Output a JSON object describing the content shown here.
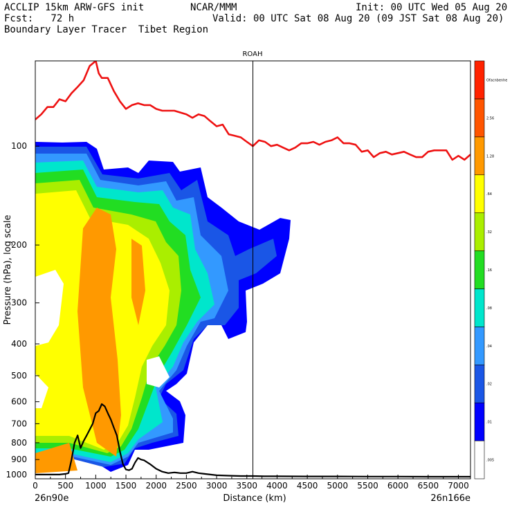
{
  "header": {
    "line1_left": "ACCLIP 15km ARW-GFS init",
    "line1_mid": "NCAR/MMM",
    "line1_right": "Init: 00 UTC Wed 05 Aug 20",
    "line2_left": "Fcst:   72 h",
    "line2_right": "Valid: 00 UTC Sat 08 Aug 20 (09 JST Sat 08 Aug 20)",
    "line3_left": "Boundary Layer Tracer  Tibet Region"
  },
  "chart_data": {
    "type": "contour-cross-section",
    "marker_label": "ROAH",
    "marker_x": 3600,
    "xlabel": "Distance (km)",
    "ylabel": "Pressure (hPa), log scale",
    "x_start_label": "26n90e",
    "x_end_label": "26n166e",
    "xlim": [
      0,
      7200
    ],
    "ylim": [
      1030,
      55
    ],
    "y_scale": "log",
    "x_ticks": [
      0,
      500,
      1000,
      1500,
      2000,
      2500,
      3000,
      3500,
      4000,
      4500,
      5000,
      5500,
      6000,
      6500,
      7000
    ],
    "y_ticks": [
      100,
      200,
      300,
      400,
      500,
      600,
      700,
      800,
      900,
      1000
    ],
    "colorbar": {
      "labels": [
        ".005",
        ".01",
        ".02",
        ".04",
        ".08",
        ".16",
        ".32",
        ".64",
        "1.28",
        "2.56",
        "Ofacnbenhe"
      ],
      "colors": [
        "#ffffff",
        "#0000ff",
        "#1a56e6",
        "#3399ff",
        "#00e6cc",
        "#22dd22",
        "#aaee00",
        "#ffff00",
        "#ff9900",
        "#ff5500",
        "#ff2200"
      ]
    },
    "series": [
      {
        "role": "red-line",
        "color": "#ee1111",
        "x": [
          0,
          100,
          200,
          300,
          400,
          500,
          600,
          700,
          800,
          900,
          950,
          1000,
          1050,
          1100,
          1200,
          1300,
          1400,
          1500,
          1600,
          1700,
          1800,
          1900,
          2000,
          2100,
          2200,
          2300,
          2400,
          2500,
          2600,
          2700,
          2800,
          2900,
          3000,
          3100,
          3200,
          3300,
          3400,
          3500,
          3600,
          3700,
          3800,
          3900,
          4000,
          4100,
          4200,
          4300,
          4400,
          4500,
          4600,
          4700,
          4800,
          4900,
          5000,
          5100,
          5200,
          5300,
          5400,
          5500,
          5600,
          5700,
          5800,
          5900,
          6000,
          6100,
          6200,
          6300,
          6400,
          6500,
          6600,
          6700,
          6800,
          6900,
          7000,
          7100,
          7200
        ],
        "y": [
          83,
          80,
          76,
          76,
          72,
          73,
          69,
          66,
          63,
          57,
          56,
          55,
          60,
          62,
          62,
          68,
          73,
          77,
          75,
          74,
          75,
          75,
          77,
          78,
          78,
          78,
          79,
          80,
          82,
          80,
          81,
          84,
          87,
          86,
          92,
          93,
          94,
          97,
          100,
          96,
          97,
          100,
          99,
          101,
          103,
          101,
          98,
          98,
          97,
          99,
          97,
          96,
          94,
          98,
          98,
          99,
          104,
          103,
          108,
          105,
          104,
          106,
          105,
          104,
          106,
          108,
          108,
          104,
          103,
          103,
          103,
          110,
          107,
          110,
          106
        ]
      },
      {
        "role": "terrain-line",
        "color": "#000000",
        "x": [
          0,
          100,
          200,
          300,
          400,
          500,
          550,
          600,
          650,
          700,
          750,
          800,
          850,
          900,
          950,
          1000,
          1050,
          1100,
          1150,
          1200,
          1250,
          1300,
          1350,
          1400,
          1450,
          1500,
          1550,
          1600,
          1650,
          1700,
          1750,
          1800,
          1900,
          2000,
          2100,
          2200,
          2300,
          2400,
          2500,
          2600,
          2700,
          2800,
          2900,
          3000,
          3200,
          3400,
          3600,
          3800,
          4000,
          4500,
          5000,
          5500,
          6000,
          6500,
          7000,
          7200
        ],
        "y": [
          1000,
          1000,
          1000,
          1000,
          1000,
          995,
          990,
          900,
          800,
          760,
          830,
          790,
          760,
          730,
          700,
          650,
          640,
          610,
          620,
          650,
          680,
          720,
          760,
          850,
          930,
          965,
          970,
          960,
          920,
          890,
          900,
          905,
          930,
          960,
          980,
          990,
          985,
          990,
          990,
          980,
          990,
          995,
          1000,
          1005,
          1008,
          1010,
          1010,
          1012,
          1012,
          1013,
          1013,
          1014,
          1014,
          1015,
          1015,
          1015
        ]
      }
    ]
  }
}
